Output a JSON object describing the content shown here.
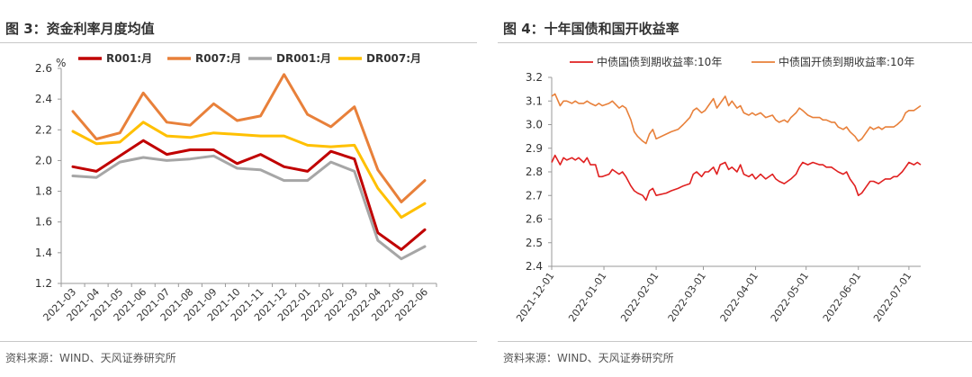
{
  "left": {
    "title": "图 3：资金利率月度均值",
    "source": "资料来源：WIND、天风证券研究所",
    "colors": {
      "R001": "#c00000",
      "R007": "#e8803a",
      "DR001": "#a6a6a6",
      "DR007": "#ffc000"
    },
    "chart_data": {
      "type": "line",
      "title": "",
      "xlabel": "",
      "ylabel": "%",
      "ylim": [
        1.2,
        2.6
      ],
      "yticks": [
        "1.2",
        "1.4",
        "1.6",
        "1.8",
        "2.0",
        "2.2",
        "2.4",
        "2.6"
      ],
      "grid": false,
      "legend": "top",
      "categories": [
        "2021-03",
        "2021-04",
        "2021-05",
        "2021-06",
        "2021-07",
        "2021-08",
        "2021-09",
        "2021-10",
        "2021-11",
        "2021-12",
        "2022-01",
        "2022-02",
        "2022-03",
        "2022-04",
        "2022-05",
        "2022-06"
      ],
      "series": [
        {
          "name": "R001:月",
          "values": [
            1.96,
            1.93,
            2.03,
            2.13,
            2.04,
            2.07,
            2.07,
            1.98,
            2.04,
            1.96,
            1.93,
            2.06,
            2.01,
            1.53,
            1.42,
            1.55
          ]
        },
        {
          "name": "R007:月",
          "values": [
            2.32,
            2.14,
            2.18,
            2.44,
            2.25,
            2.23,
            2.37,
            2.26,
            2.29,
            2.56,
            2.3,
            2.22,
            2.35,
            1.94,
            1.73,
            1.87
          ]
        },
        {
          "name": "DR001:月",
          "values": [
            1.9,
            1.89,
            1.99,
            2.02,
            2.0,
            2.01,
            2.03,
            1.95,
            1.94,
            1.87,
            1.87,
            1.99,
            1.93,
            1.48,
            1.36,
            1.44
          ]
        },
        {
          "name": "DR007:月",
          "values": [
            2.19,
            2.11,
            2.12,
            2.25,
            2.16,
            2.15,
            2.18,
            2.17,
            2.16,
            2.16,
            2.1,
            2.09,
            2.1,
            1.82,
            1.63,
            1.72
          ]
        }
      ]
    }
  },
  "right": {
    "title": "图 4：十年国债和国开收益率",
    "source": "资料来源：WIND、天风证券研究所",
    "colors": {
      "gov": "#e02020",
      "cdb": "#e8803a"
    },
    "chart_data": {
      "type": "line",
      "title": "",
      "xlabel": "",
      "ylabel": "",
      "ylim": [
        2.4,
        3.2
      ],
      "yticks": [
        "2.4",
        "2.5",
        "2.6",
        "2.7",
        "2.8",
        "2.9",
        "3.0",
        "3.1",
        "3.2"
      ],
      "xlim": [
        "2021-12-01",
        "2022-07-08"
      ],
      "xticks": [
        "2021-12-01",
        "2022-01-01",
        "2022-02-01",
        "2022-03-01",
        "2022-04-01",
        "2022-05-01",
        "2022-06-01",
        "2022-07-01"
      ],
      "grid": false,
      "legend": "top",
      "series": [
        {
          "name": "中债国债到期收益率:10年",
          "points": [
            [
              "2021-12-01",
              2.84
            ],
            [
              "2021-12-03",
              2.87
            ],
            [
              "2021-12-06",
              2.83
            ],
            [
              "2021-12-08",
              2.86
            ],
            [
              "2021-12-10",
              2.85
            ],
            [
              "2021-12-13",
              2.86
            ],
            [
              "2021-12-15",
              2.85
            ],
            [
              "2021-12-17",
              2.86
            ],
            [
              "2021-12-20",
              2.84
            ],
            [
              "2021-12-22",
              2.86
            ],
            [
              "2021-12-24",
              2.83
            ],
            [
              "2021-12-27",
              2.83
            ],
            [
              "2021-12-29",
              2.78
            ],
            [
              "2021-12-31",
              2.78
            ],
            [
              "2022-01-04",
              2.79
            ],
            [
              "2022-01-06",
              2.81
            ],
            [
              "2022-01-10",
              2.79
            ],
            [
              "2022-01-12",
              2.8
            ],
            [
              "2022-01-14",
              2.78
            ],
            [
              "2022-01-17",
              2.74
            ],
            [
              "2022-01-19",
              2.72
            ],
            [
              "2022-01-21",
              2.71
            ],
            [
              "2022-01-24",
              2.7
            ],
            [
              "2022-01-26",
              2.68
            ],
            [
              "2022-01-28",
              2.72
            ],
            [
              "2022-01-30",
              2.73
            ],
            [
              "2022-02-01",
              2.7
            ],
            [
              "2022-02-07",
              2.71
            ],
            [
              "2022-02-10",
              2.72
            ],
            [
              "2022-02-14",
              2.73
            ],
            [
              "2022-02-17",
              2.74
            ],
            [
              "2022-02-21",
              2.75
            ],
            [
              "2022-02-23",
              2.79
            ],
            [
              "2022-02-25",
              2.8
            ],
            [
              "2022-02-28",
              2.78
            ],
            [
              "2022-03-02",
              2.8
            ],
            [
              "2022-03-04",
              2.8
            ],
            [
              "2022-03-07",
              2.82
            ],
            [
              "2022-03-09",
              2.79
            ],
            [
              "2022-03-11",
              2.83
            ],
            [
              "2022-03-14",
              2.84
            ],
            [
              "2022-03-16",
              2.81
            ],
            [
              "2022-03-18",
              2.82
            ],
            [
              "2022-03-21",
              2.8
            ],
            [
              "2022-03-23",
              2.83
            ],
            [
              "2022-03-25",
              2.79
            ],
            [
              "2022-03-28",
              2.78
            ],
            [
              "2022-03-30",
              2.79
            ],
            [
              "2022-04-01",
              2.77
            ],
            [
              "2022-04-04",
              2.79
            ],
            [
              "2022-04-07",
              2.77
            ],
            [
              "2022-04-11",
              2.79
            ],
            [
              "2022-04-13",
              2.77
            ],
            [
              "2022-04-15",
              2.76
            ],
            [
              "2022-04-18",
              2.75
            ],
            [
              "2022-04-20",
              2.76
            ],
            [
              "2022-04-22",
              2.77
            ],
            [
              "2022-04-25",
              2.79
            ],
            [
              "2022-04-27",
              2.82
            ],
            [
              "2022-04-29",
              2.84
            ],
            [
              "2022-05-02",
              2.83
            ],
            [
              "2022-05-05",
              2.84
            ],
            [
              "2022-05-09",
              2.83
            ],
            [
              "2022-05-11",
              2.83
            ],
            [
              "2022-05-13",
              2.82
            ],
            [
              "2022-05-16",
              2.82
            ],
            [
              "2022-05-18",
              2.81
            ],
            [
              "2022-05-20",
              2.8
            ],
            [
              "2022-05-23",
              2.79
            ],
            [
              "2022-05-25",
              2.8
            ],
            [
              "2022-05-27",
              2.77
            ],
            [
              "2022-05-30",
              2.74
            ],
            [
              "2022-06-01",
              2.7
            ],
            [
              "2022-06-03",
              2.71
            ],
            [
              "2022-06-06",
              2.74
            ],
            [
              "2022-06-08",
              2.76
            ],
            [
              "2022-06-10",
              2.76
            ],
            [
              "2022-06-13",
              2.75
            ],
            [
              "2022-06-15",
              2.76
            ],
            [
              "2022-06-17",
              2.77
            ],
            [
              "2022-06-20",
              2.77
            ],
            [
              "2022-06-22",
              2.78
            ],
            [
              "2022-06-24",
              2.78
            ],
            [
              "2022-06-27",
              2.8
            ],
            [
              "2022-06-29",
              2.82
            ],
            [
              "2022-07-01",
              2.84
            ],
            [
              "2022-07-04",
              2.83
            ],
            [
              "2022-07-06",
              2.84
            ],
            [
              "2022-07-08",
              2.83
            ]
          ]
        },
        {
          "name": "中债国开债到期收益率:10年",
          "points": [
            [
              "2021-12-01",
              3.12
            ],
            [
              "2021-12-03",
              3.13
            ],
            [
              "2021-12-06",
              3.08
            ],
            [
              "2021-12-08",
              3.1
            ],
            [
              "2021-12-10",
              3.1
            ],
            [
              "2021-12-13",
              3.09
            ],
            [
              "2021-12-15",
              3.1
            ],
            [
              "2021-12-17",
              3.09
            ],
            [
              "2021-12-20",
              3.09
            ],
            [
              "2021-12-22",
              3.1
            ],
            [
              "2021-12-24",
              3.09
            ],
            [
              "2021-12-27",
              3.08
            ],
            [
              "2021-12-29",
              3.09
            ],
            [
              "2021-12-31",
              3.08
            ],
            [
              "2022-01-04",
              3.09
            ],
            [
              "2022-01-06",
              3.1
            ],
            [
              "2022-01-10",
              3.07
            ],
            [
              "2022-01-12",
              3.08
            ],
            [
              "2022-01-14",
              3.07
            ],
            [
              "2022-01-17",
              3.02
            ],
            [
              "2022-01-19",
              2.97
            ],
            [
              "2022-01-21",
              2.95
            ],
            [
              "2022-01-24",
              2.93
            ],
            [
              "2022-01-26",
              2.92
            ],
            [
              "2022-01-28",
              2.96
            ],
            [
              "2022-01-30",
              2.98
            ],
            [
              "2022-02-01",
              2.94
            ],
            [
              "2022-02-07",
              2.96
            ],
            [
              "2022-02-10",
              2.97
            ],
            [
              "2022-02-14",
              2.98
            ],
            [
              "2022-02-17",
              3.0
            ],
            [
              "2022-02-21",
              3.03
            ],
            [
              "2022-02-23",
              3.06
            ],
            [
              "2022-02-25",
              3.07
            ],
            [
              "2022-02-28",
              3.05
            ],
            [
              "2022-03-02",
              3.06
            ],
            [
              "2022-03-04",
              3.08
            ],
            [
              "2022-03-07",
              3.11
            ],
            [
              "2022-03-09",
              3.07
            ],
            [
              "2022-03-11",
              3.09
            ],
            [
              "2022-03-14",
              3.12
            ],
            [
              "2022-03-16",
              3.08
            ],
            [
              "2022-03-18",
              3.1
            ],
            [
              "2022-03-21",
              3.07
            ],
            [
              "2022-03-23",
              3.08
            ],
            [
              "2022-03-25",
              3.05
            ],
            [
              "2022-03-28",
              3.04
            ],
            [
              "2022-03-30",
              3.05
            ],
            [
              "2022-04-01",
              3.04
            ],
            [
              "2022-04-04",
              3.05
            ],
            [
              "2022-04-07",
              3.03
            ],
            [
              "2022-04-11",
              3.04
            ],
            [
              "2022-04-13",
              3.02
            ],
            [
              "2022-04-15",
              3.01
            ],
            [
              "2022-04-18",
              3.02
            ],
            [
              "2022-04-20",
              3.01
            ],
            [
              "2022-04-22",
              3.03
            ],
            [
              "2022-04-25",
              3.05
            ],
            [
              "2022-04-27",
              3.07
            ],
            [
              "2022-04-29",
              3.06
            ],
            [
              "2022-05-02",
              3.04
            ],
            [
              "2022-05-05",
              3.03
            ],
            [
              "2022-05-09",
              3.03
            ],
            [
              "2022-05-11",
              3.02
            ],
            [
              "2022-05-13",
              3.02
            ],
            [
              "2022-05-16",
              3.01
            ],
            [
              "2022-05-18",
              3.01
            ],
            [
              "2022-05-20",
              2.99
            ],
            [
              "2022-05-23",
              2.98
            ],
            [
              "2022-05-25",
              2.99
            ],
            [
              "2022-05-27",
              2.97
            ],
            [
              "2022-05-30",
              2.95
            ],
            [
              "2022-06-01",
              2.93
            ],
            [
              "2022-06-03",
              2.94
            ],
            [
              "2022-06-06",
              2.97
            ],
            [
              "2022-06-08",
              2.99
            ],
            [
              "2022-06-10",
              2.98
            ],
            [
              "2022-06-13",
              2.99
            ],
            [
              "2022-06-15",
              2.98
            ],
            [
              "2022-06-17",
              2.99
            ],
            [
              "2022-06-20",
              2.99
            ],
            [
              "2022-06-22",
              2.99
            ],
            [
              "2022-06-24",
              3.0
            ],
            [
              "2022-06-27",
              3.02
            ],
            [
              "2022-06-29",
              3.05
            ],
            [
              "2022-07-01",
              3.06
            ],
            [
              "2022-07-04",
              3.06
            ],
            [
              "2022-07-06",
              3.07
            ],
            [
              "2022-07-08",
              3.08
            ]
          ]
        }
      ]
    }
  }
}
